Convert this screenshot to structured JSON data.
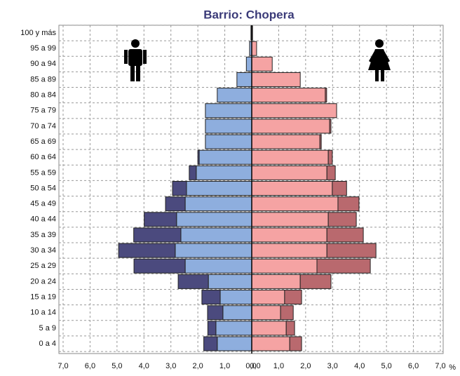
{
  "chart_data": {
    "type": "pyramid",
    "title": "Barrio: Chopera",
    "categories": [
      "0 a 4",
      "5 a 9",
      "10 a 14",
      "15 a 19",
      "20 a 24",
      "25 a 29",
      "30 a 34",
      "35 a 39",
      "40 a 44",
      "45 a 49",
      "50 a 54",
      "55 a 59",
      "60 a 64",
      "65 a 69",
      "70 a 74",
      "75 a 79",
      "80 a 84",
      "85 a 89",
      "90 a 94",
      "95 a 99",
      "100 y más"
    ],
    "series": [
      {
        "side": "left",
        "color": "#8eaede",
        "values": [
          1.28,
          1.33,
          1.07,
          1.17,
          1.61,
          2.47,
          2.84,
          2.63,
          2.79,
          2.47,
          2.42,
          2.06,
          1.95,
          1.72,
          1.72,
          1.72,
          1.28,
          0.55,
          0.2,
          0.08,
          0.03
        ]
      },
      {
        "side": "left",
        "color": "#4b4a7e",
        "values": [
          0.5,
          0.3,
          0.57,
          0.68,
          1.12,
          1.9,
          2.1,
          1.75,
          1.2,
          0.73,
          0.52,
          0.26,
          0.05,
          0,
          0,
          0,
          0,
          0,
          0,
          0,
          0
        ]
      },
      {
        "side": "right",
        "color": "#f5a3a3",
        "values": [
          1.41,
          1.28,
          1.07,
          1.22,
          1.8,
          2.42,
          2.79,
          2.79,
          2.84,
          3.2,
          2.99,
          2.79,
          2.84,
          2.53,
          2.89,
          3.15,
          2.73,
          1.8,
          0.76,
          0.18,
          0.03
        ]
      },
      {
        "side": "right",
        "color": "#b9696e",
        "values": [
          0.44,
          0.31,
          0.47,
          0.63,
          1.14,
          1.98,
          1.82,
          1.35,
          1.04,
          0.78,
          0.53,
          0.31,
          0.15,
          0.05,
          0.05,
          0,
          0.05,
          0,
          0,
          0,
          0
        ]
      }
    ],
    "xlim": [
      0,
      7
    ],
    "left_xticks": [
      {
        "value": 7,
        "label": "7,0"
      },
      {
        "value": 6,
        "label": "6,0"
      },
      {
        "value": 5,
        "label": "5,0"
      },
      {
        "value": 4,
        "label": "4,0"
      },
      {
        "value": 3,
        "label": "3,0"
      },
      {
        "value": 2,
        "label": "2,0"
      },
      {
        "value": 1,
        "label": "1,0"
      },
      {
        "value": 0,
        "label": "0,0"
      }
    ],
    "right_xticks": [
      {
        "value": 0,
        "label": "0,0"
      },
      {
        "value": 1,
        "label": "1,0"
      },
      {
        "value": 2,
        "label": "2,0"
      },
      {
        "value": 3,
        "label": "3,0"
      },
      {
        "value": 4,
        "label": "4,0"
      },
      {
        "value": 5,
        "label": "5,0"
      },
      {
        "value": 6,
        "label": "6,0"
      },
      {
        "value": 7,
        "label": "7,0"
      }
    ],
    "x_unit": "%",
    "grid": true
  }
}
